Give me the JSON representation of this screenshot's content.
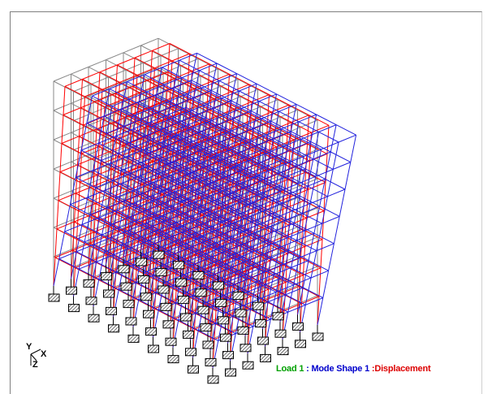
{
  "viewport": {
    "axis_labels": {
      "y": "Y",
      "x": "X",
      "z": "Z"
    },
    "status": {
      "load": "Load 1",
      "sep1": " : ",
      "mode": "Mode Shape 1",
      "sep2": " :",
      "result": "Displacement"
    }
  },
  "colors": {
    "undeformed": "#888888",
    "mode_shape": "#ff0000",
    "displacement": "#2222dd",
    "support_fill": "#9a9a9a",
    "load_text": "#00a000",
    "mode_text": "#0000cc",
    "result_text": "#dd0000"
  },
  "icons": {
    "support": "fixed-support-hatch-icon",
    "axes": "coordinate-axes-icon"
  }
}
